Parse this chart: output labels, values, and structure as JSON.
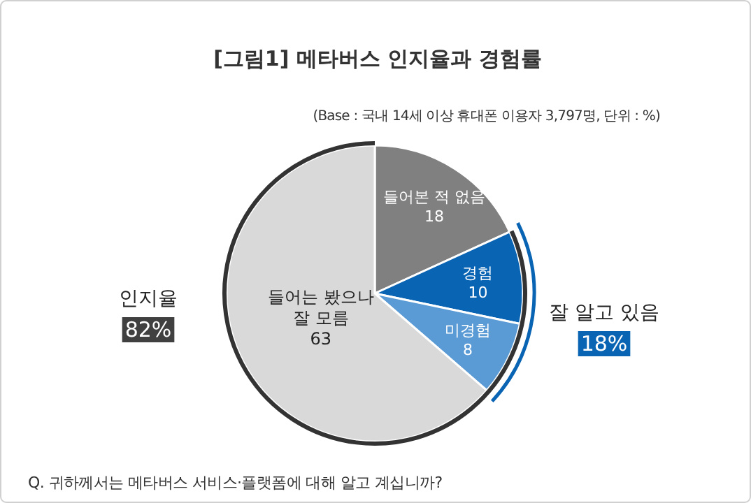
{
  "chart_data": {
    "type": "pie",
    "title": "[그림1] 메타버스 인지율과 경험률",
    "subtitle": "(Base : 국내 14세 이상 휴대폰 이용자 3,797명, 단위 : %)",
    "categories": [
      "들어본 적 없음",
      "경험",
      "미경험",
      "들어는 봤으나 잘 모름"
    ],
    "values": [
      18,
      10,
      8,
      63
    ],
    "colors": [
      "#808080",
      "#0a64b4",
      "#5b9bd5",
      "#d9d9d9"
    ],
    "data_labels": true,
    "annotations": [
      "인지율",
      "82%",
      "잘 알고 있음",
      "18%",
      "Q. 귀하께서는 메타버스 서비스·플랫폼에 대해 알고 계십니까?"
    ]
  }
}
